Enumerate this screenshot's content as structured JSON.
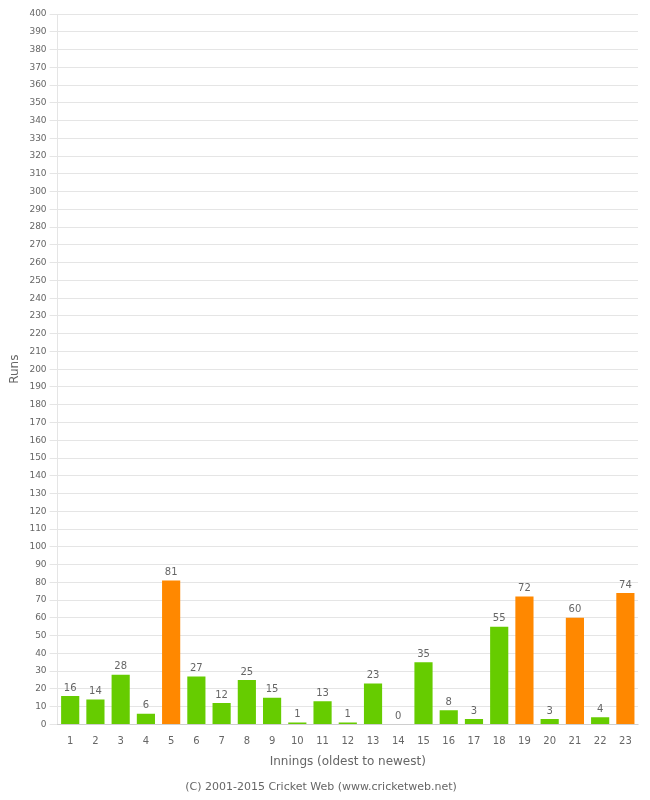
{
  "chart_data": {
    "type": "bar",
    "categories": [
      "1",
      "2",
      "3",
      "4",
      "5",
      "6",
      "7",
      "8",
      "9",
      "10",
      "11",
      "12",
      "13",
      "14",
      "15",
      "16",
      "17",
      "18",
      "19",
      "20",
      "21",
      "22",
      "23"
    ],
    "values": [
      16,
      14,
      28,
      6,
      81,
      27,
      12,
      25,
      15,
      1,
      13,
      1,
      23,
      0,
      35,
      8,
      3,
      55,
      72,
      3,
      60,
      4,
      74
    ],
    "colors": [
      "#66cc00",
      "#66cc00",
      "#66cc00",
      "#66cc00",
      "#ff8800",
      "#66cc00",
      "#66cc00",
      "#66cc00",
      "#66cc00",
      "#66cc00",
      "#66cc00",
      "#66cc00",
      "#66cc00",
      "#66cc00",
      "#66cc00",
      "#66cc00",
      "#66cc00",
      "#66cc00",
      "#ff8800",
      "#66cc00",
      "#ff8800",
      "#66cc00",
      "#ff8800"
    ],
    "xlabel": "Innings (oldest to newest)",
    "ylabel": "Runs",
    "ylim": [
      0,
      400
    ],
    "yticks": [
      0,
      10,
      20,
      30,
      40,
      50,
      60,
      70,
      80,
      90,
      100,
      110,
      120,
      130,
      140,
      150,
      160,
      170,
      180,
      190,
      200,
      210,
      220,
      230,
      240,
      250,
      260,
      270,
      280,
      290,
      300,
      310,
      320,
      330,
      340,
      350,
      360,
      370,
      380,
      390,
      400
    ],
    "grid": true,
    "data_labels": true,
    "annotations": [
      "(C) 2001-2015 Cricket Web (www.cricketweb.net)"
    ]
  }
}
